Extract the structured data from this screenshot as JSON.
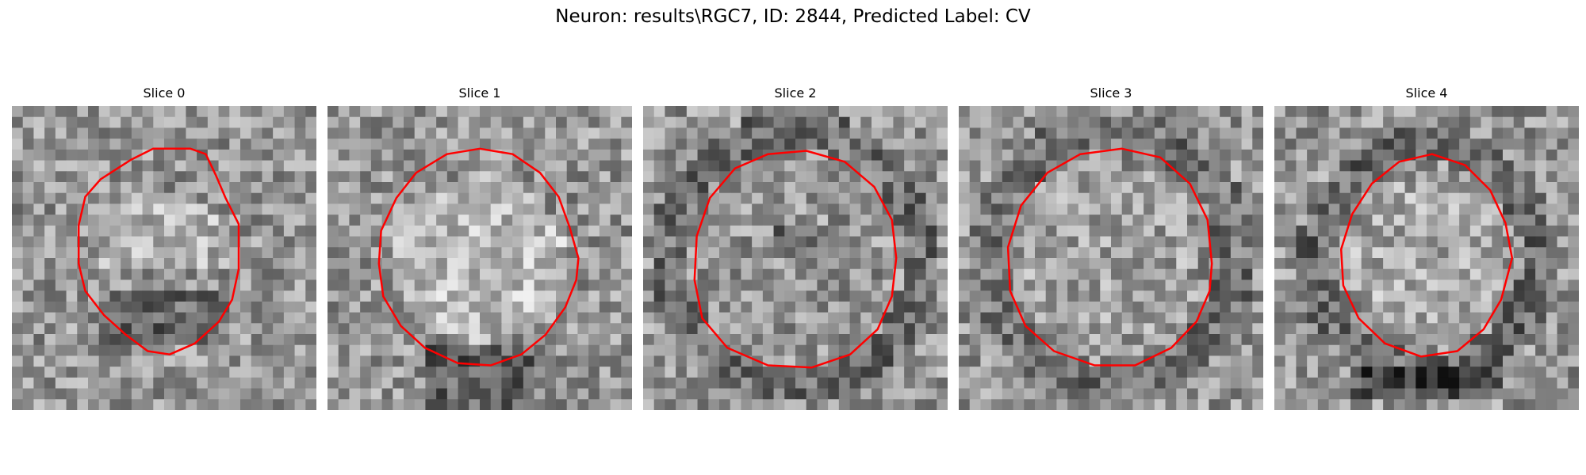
{
  "figure": {
    "title": "Neuron: results\\RGC7, ID: 2844, Predicted Label: CV"
  },
  "contour_color": "#ff0000",
  "panels": [
    {
      "title": "Slice 0",
      "seed": 11,
      "blob": "faint-bright",
      "contour": [
        [
          0.68,
          -0.31
        ],
        [
          0.56,
          -0.55
        ],
        [
          0.47,
          -0.76
        ],
        [
          0.38,
          -0.95
        ],
        [
          0.24,
          -1.0
        ],
        [
          0.1,
          -1.0
        ],
        [
          -0.1,
          -1.0
        ],
        [
          -0.3,
          -0.9
        ],
        [
          -0.58,
          -0.72
        ],
        [
          -0.72,
          -0.56
        ],
        [
          -0.78,
          -0.3
        ],
        [
          -0.78,
          0.05
        ],
        [
          -0.72,
          0.3
        ],
        [
          -0.55,
          0.52
        ],
        [
          -0.35,
          0.7
        ],
        [
          -0.15,
          0.85
        ],
        [
          0.05,
          0.88
        ],
        [
          0.28,
          0.78
        ],
        [
          0.5,
          0.58
        ],
        [
          0.62,
          0.38
        ],
        [
          0.68,
          0.1
        ]
      ]
    },
    {
      "title": "Slice 1",
      "seed": 23,
      "blob": "bright-core",
      "contour": [
        [
          0.9,
          0.0
        ],
        [
          0.82,
          -0.28
        ],
        [
          0.72,
          -0.56
        ],
        [
          0.55,
          -0.78
        ],
        [
          0.3,
          -0.95
        ],
        [
          0.0,
          -1.0
        ],
        [
          -0.3,
          -0.95
        ],
        [
          -0.58,
          -0.78
        ],
        [
          -0.76,
          -0.55
        ],
        [
          -0.9,
          -0.25
        ],
        [
          -0.92,
          0.05
        ],
        [
          -0.88,
          0.35
        ],
        [
          -0.72,
          0.62
        ],
        [
          -0.5,
          0.82
        ],
        [
          -0.2,
          0.96
        ],
        [
          0.1,
          0.98
        ],
        [
          0.38,
          0.88
        ],
        [
          0.6,
          0.7
        ],
        [
          0.78,
          0.45
        ],
        [
          0.88,
          0.2
        ]
      ]
    },
    {
      "title": "Slice 2",
      "seed": 37,
      "blob": "dark-center",
      "contour": [
        [
          0.92,
          0.0
        ],
        [
          0.88,
          -0.35
        ],
        [
          0.72,
          -0.65
        ],
        [
          0.45,
          -0.88
        ],
        [
          0.1,
          -0.98
        ],
        [
          -0.25,
          -0.95
        ],
        [
          -0.55,
          -0.82
        ],
        [
          -0.78,
          -0.55
        ],
        [
          -0.9,
          -0.2
        ],
        [
          -0.92,
          0.2
        ],
        [
          -0.85,
          0.55
        ],
        [
          -0.62,
          0.82
        ],
        [
          -0.25,
          0.98
        ],
        [
          0.15,
          1.0
        ],
        [
          0.5,
          0.88
        ],
        [
          0.75,
          0.65
        ],
        [
          0.88,
          0.35
        ]
      ]
    },
    {
      "title": "Slice 3",
      "seed": 53,
      "blob": "ring",
      "contour": [
        [
          0.92,
          0.05
        ],
        [
          0.88,
          -0.35
        ],
        [
          0.72,
          -0.68
        ],
        [
          0.45,
          -0.92
        ],
        [
          0.1,
          -1.0
        ],
        [
          -0.28,
          -0.95
        ],
        [
          -0.58,
          -0.78
        ],
        [
          -0.82,
          -0.48
        ],
        [
          -0.94,
          -0.1
        ],
        [
          -0.92,
          0.3
        ],
        [
          -0.78,
          0.62
        ],
        [
          -0.52,
          0.85
        ],
        [
          -0.15,
          0.98
        ],
        [
          0.22,
          0.98
        ],
        [
          0.55,
          0.82
        ],
        [
          0.78,
          0.58
        ],
        [
          0.9,
          0.3
        ]
      ]
    },
    {
      "title": "Slice 4",
      "seed": 71,
      "blob": "dark-ring",
      "contour": [
        [
          0.78,
          0.0
        ],
        [
          0.72,
          -0.32
        ],
        [
          0.58,
          -0.62
        ],
        [
          0.35,
          -0.85
        ],
        [
          0.05,
          -0.95
        ],
        [
          -0.25,
          -0.88
        ],
        [
          -0.5,
          -0.68
        ],
        [
          -0.68,
          -0.4
        ],
        [
          -0.78,
          -0.08
        ],
        [
          -0.76,
          0.25
        ],
        [
          -0.62,
          0.55
        ],
        [
          -0.38,
          0.78
        ],
        [
          -0.05,
          0.9
        ],
        [
          0.28,
          0.85
        ],
        [
          0.52,
          0.65
        ],
        [
          0.68,
          0.38
        ]
      ]
    }
  ]
}
